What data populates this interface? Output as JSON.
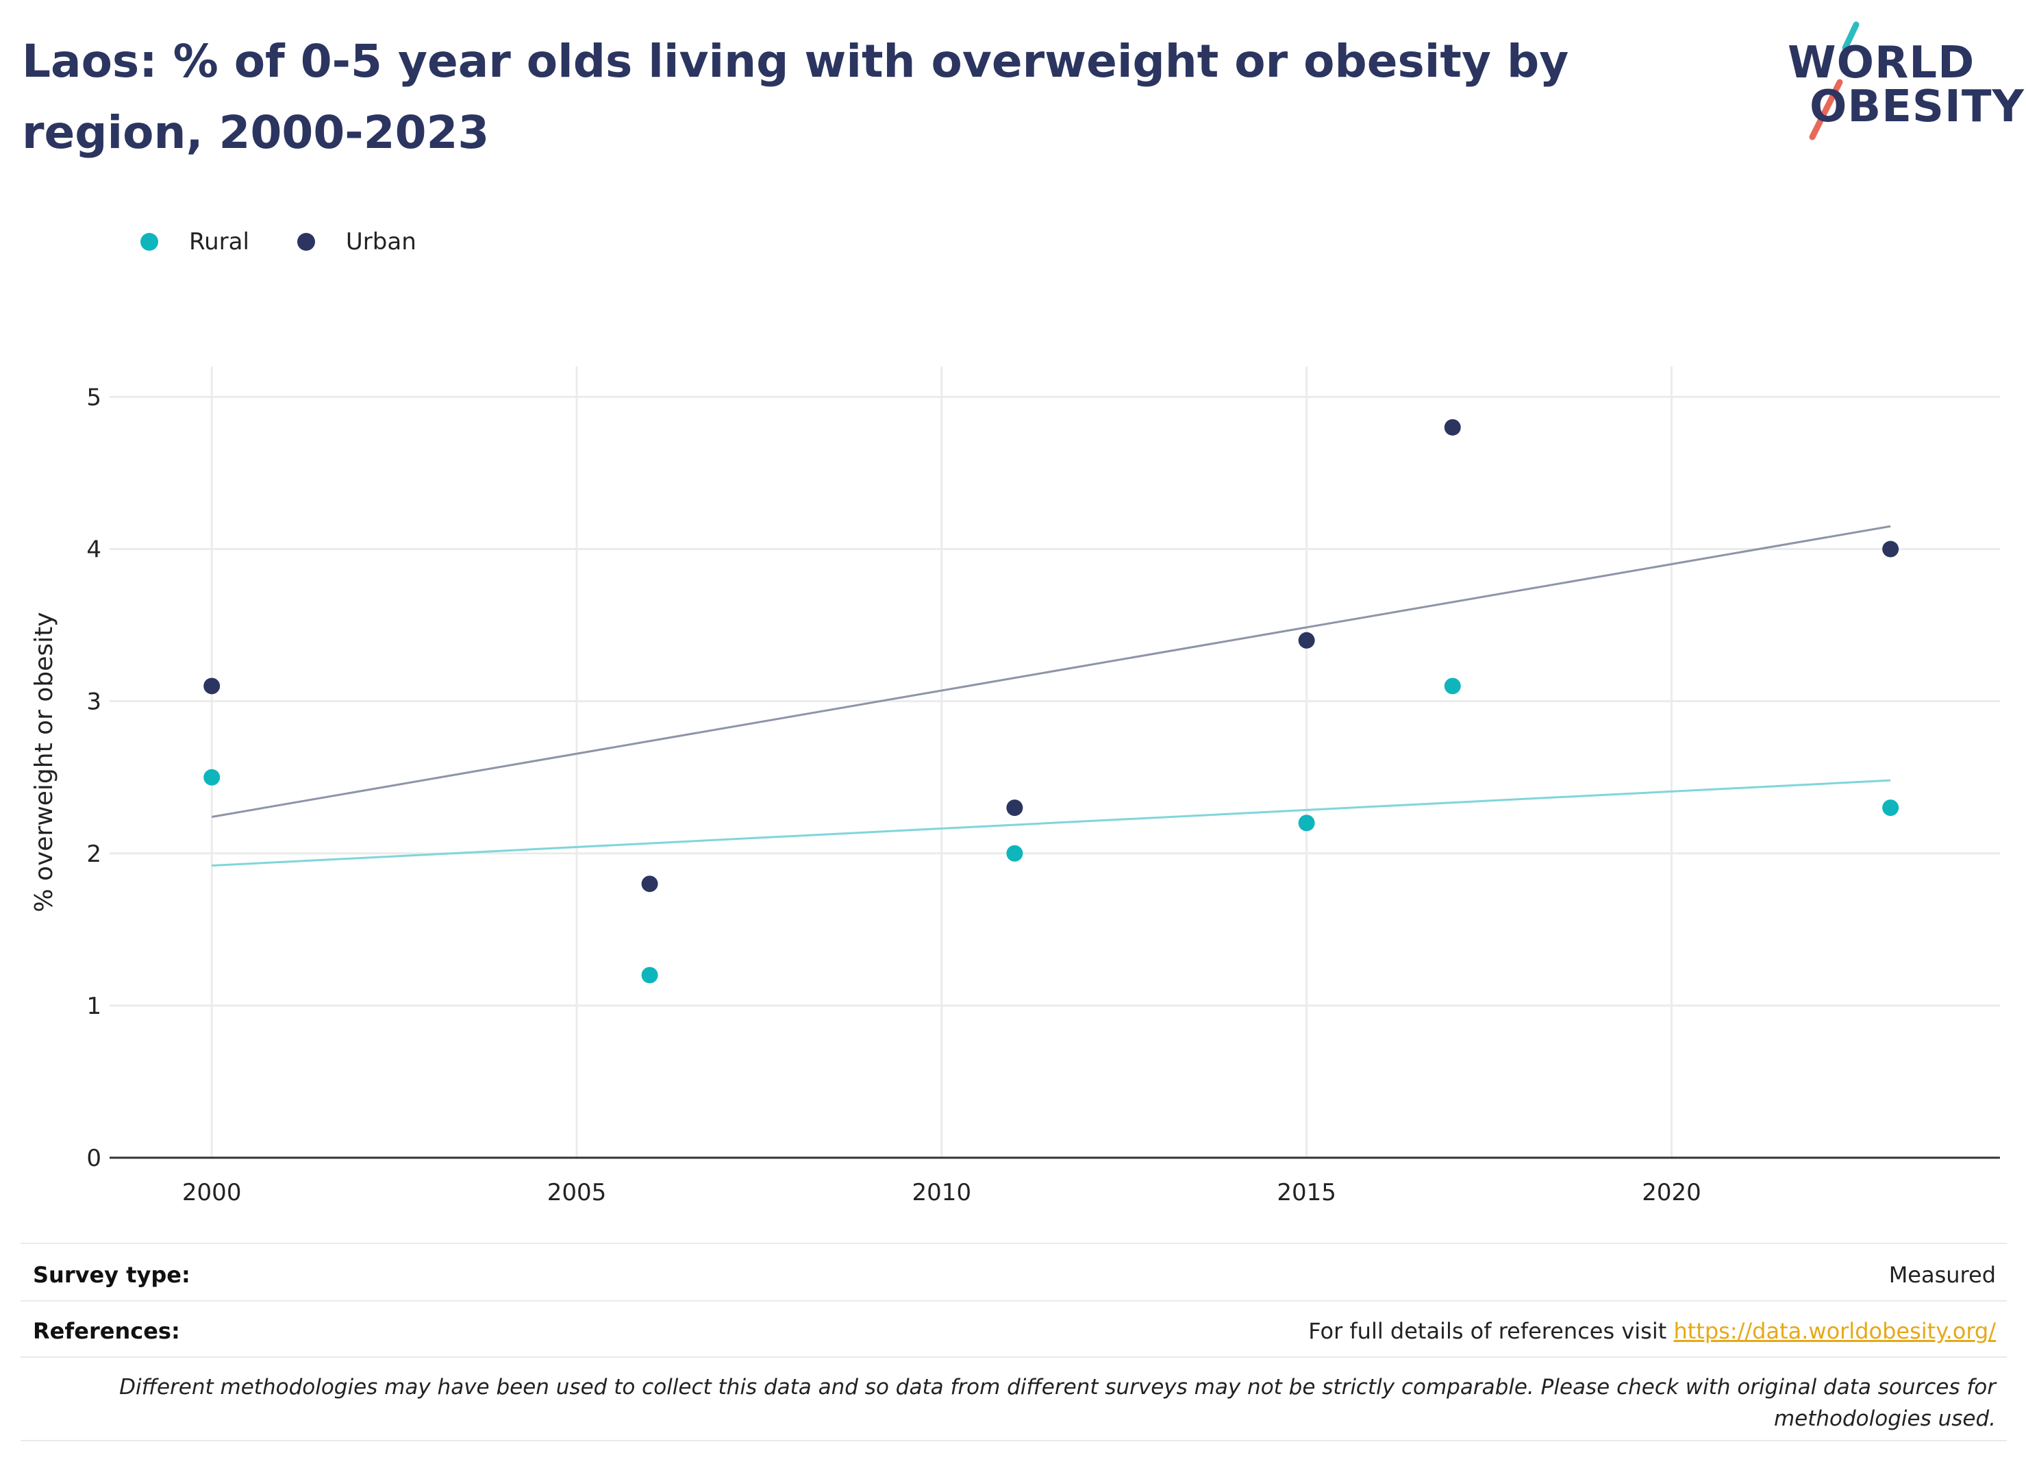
{
  "title": "Laos: % of 0-5 year olds living with overweight or obesity by region, 2000-2023",
  "logo": {
    "line1": "WORLD",
    "line2": "OBESITY",
    "accent_teal": "#2bbcc1",
    "accent_coral": "#e8685a"
  },
  "legend": [
    {
      "label": "Rural",
      "color": "#0fb5bd"
    },
    {
      "label": "Urban",
      "color": "#2b3560"
    }
  ],
  "footer": {
    "survey_label": "Survey type:",
    "survey_value": "Measured",
    "references_label": "References:",
    "references_text": "For full details of references visit ",
    "references_link": "https://data.worldobesity.org/",
    "disclaimer": "Different methodologies may have been used to collect this data and so data from different surveys may not be strictly comparable. Please check with original data sources for methodologies used."
  },
  "chart_data": {
    "type": "scatter",
    "ylabel": "% overweight or obesity",
    "xlim": [
      1998.6,
      2024.5
    ],
    "ylim": [
      0,
      5.2
    ],
    "x_ticks": [
      2000,
      2005,
      2010,
      2015,
      2020
    ],
    "y_ticks": [
      0,
      1,
      2,
      3,
      4,
      5
    ],
    "grid": true,
    "legend_position": "top-left",
    "series": [
      {
        "name": "Rural",
        "color": "#0fb5bd",
        "trend_color": "#7fd6da",
        "x": [
          2000,
          2006,
          2011,
          2015,
          2017,
          2023
        ],
        "y": [
          2.5,
          1.2,
          2.0,
          2.2,
          3.1,
          2.3
        ],
        "trend": [
          [
            2000,
            1.92
          ],
          [
            2023,
            2.48
          ]
        ]
      },
      {
        "name": "Urban",
        "color": "#2b3560",
        "trend_color": "#8e94a8",
        "x": [
          2000,
          2006,
          2011,
          2015,
          2017,
          2023
        ],
        "y": [
          3.1,
          1.8,
          2.3,
          3.4,
          4.8,
          4.0
        ],
        "trend": [
          [
            2000,
            2.24
          ],
          [
            2023,
            4.15
          ]
        ]
      }
    ]
  }
}
